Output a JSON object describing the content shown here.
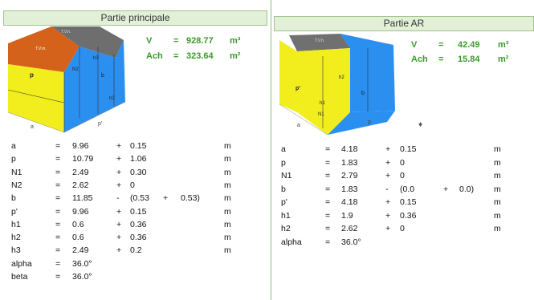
{
  "left": {
    "title": "Partie principale",
    "volume": {
      "label": "V",
      "eq": "=",
      "value": "928.77",
      "unit": "m³"
    },
    "ach": {
      "label": "Ach",
      "eq": "=",
      "value": "323.64",
      "unit": "m²"
    },
    "diagram_labels": {
      "top1": "T.V.h.",
      "roof": "T.V.m.",
      "p": "p",
      "h3": "h3",
      "N2": "N2",
      "b": "b",
      "h2": "h2",
      "a": "a",
      "pp": "p'"
    },
    "rows": [
      {
        "name": "a",
        "eq": "=",
        "value": "9.96",
        "op": "+",
        "add": "0.15",
        "extra1": "",
        "extra2": "",
        "unit": "m"
      },
      {
        "name": "p",
        "eq": "=",
        "value": "10.79",
        "op": "+",
        "add": "1.06",
        "extra1": "",
        "extra2": "",
        "unit": "m"
      },
      {
        "name": "N1",
        "eq": "=",
        "value": "2.49",
        "op": "+",
        "add": "0.30",
        "extra1": "",
        "extra2": "",
        "unit": "m"
      },
      {
        "name": "N2",
        "eq": "=",
        "value": "2.62",
        "op": "+",
        "add": "0",
        "extra1": "",
        "extra2": "",
        "unit": "m"
      },
      {
        "name": "b",
        "eq": "=",
        "value": "11.85",
        "op": "-",
        "add": "(0.53",
        "extra1": "+",
        "extra2": "0.53)",
        "unit": "m"
      },
      {
        "name": "p'",
        "eq": "=",
        "value": "9.96",
        "op": "+",
        "add": "0.15",
        "extra1": "",
        "extra2": "",
        "unit": "m"
      },
      {
        "name": "h1",
        "eq": "=",
        "value": "0.6",
        "op": "+",
        "add": "0.36",
        "extra1": "",
        "extra2": "",
        "unit": "m"
      },
      {
        "name": "h2",
        "eq": "=",
        "value": "0.6",
        "op": "+",
        "add": "0.36",
        "extra1": "",
        "extra2": "",
        "unit": "m"
      },
      {
        "name": "h3",
        "eq": "=",
        "value": "2.49",
        "op": "+",
        "add": "0.2",
        "extra1": "",
        "extra2": "",
        "unit": "m"
      },
      {
        "name": "alpha",
        "eq": "=",
        "value": "36.0°",
        "op": "",
        "add": "",
        "extra1": "",
        "extra2": "",
        "unit": ""
      },
      {
        "name": "beta",
        "eq": "=",
        "value": "36.0°",
        "op": "",
        "add": "",
        "extra1": "",
        "extra2": "",
        "unit": ""
      }
    ]
  },
  "right": {
    "title": "Partie AR",
    "volume": {
      "label": "V",
      "eq": "=",
      "value": "42.49",
      "unit": "m³"
    },
    "ach": {
      "label": "Ach",
      "eq": "=",
      "value": "15.84",
      "unit": "m²"
    },
    "diagram_labels": {
      "top1": "T.V.h.",
      "pp": "p'",
      "b": "b",
      "h2": "h2",
      "N1": "N1",
      "a": "a",
      "p": "p",
      "h1": "h1"
    },
    "rows": [
      {
        "name": "a",
        "eq": "=",
        "value": "4.18",
        "op": "+",
        "add": "0.15",
        "extra1": "",
        "extra2": "",
        "unit": "m"
      },
      {
        "name": "p",
        "eq": "=",
        "value": "1.83",
        "op": "+",
        "add": "0",
        "extra1": "",
        "extra2": "",
        "unit": "m"
      },
      {
        "name": "N1",
        "eq": "=",
        "value": "2.79",
        "op": "+",
        "add": "0",
        "extra1": "",
        "extra2": "",
        "unit": "m"
      },
      {
        "name": "b",
        "eq": "=",
        "value": "1.83",
        "op": "-",
        "add": "(0.0",
        "extra1": "+",
        "extra2": "0.0)",
        "unit": "m"
      },
      {
        "name": "p'",
        "eq": "=",
        "value": "4.18",
        "op": "+",
        "add": "0.15",
        "extra1": "",
        "extra2": "",
        "unit": "m"
      },
      {
        "name": "h1",
        "eq": "=",
        "value": "1.9",
        "op": "+",
        "add": "0.36",
        "extra1": "",
        "extra2": "",
        "unit": "m"
      },
      {
        "name": "h2",
        "eq": "=",
        "value": "2.62",
        "op": "+",
        "add": "0",
        "extra1": "",
        "extra2": "",
        "unit": "m"
      },
      {
        "name": "alpha",
        "eq": "=",
        "value": "36.0°",
        "op": "",
        "add": "",
        "extra1": "",
        "extra2": "",
        "unit": ""
      }
    ]
  },
  "colors": {
    "yellow": "#f2ee1e",
    "blue": "#2b8ff0",
    "orange": "#d4621a",
    "grey_roof": "#707070",
    "header_bg": "#e3f0d8",
    "value_green": "#3a9a2a"
  }
}
